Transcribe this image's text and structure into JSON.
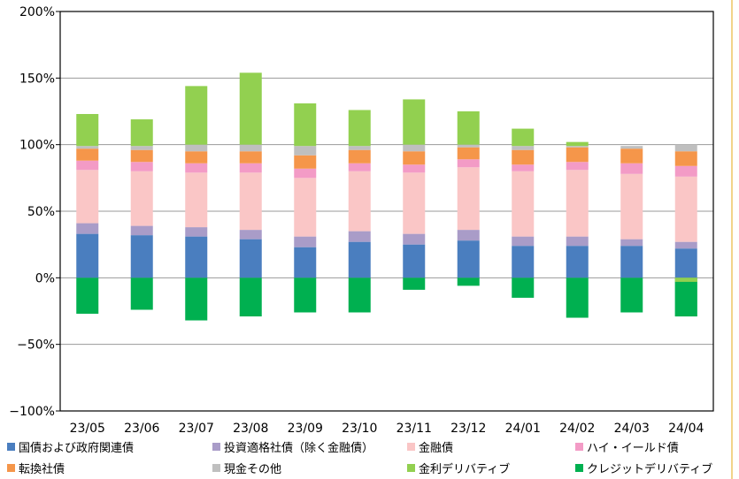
{
  "chart_data": {
    "type": "bar",
    "stacked": true,
    "categories": [
      "23/05",
      "23/06",
      "23/07",
      "23/08",
      "23/09",
      "23/10",
      "23/11",
      "23/12",
      "24/01",
      "24/02",
      "24/03",
      "24/04"
    ],
    "ylim": [
      -100,
      200
    ],
    "yticks": [
      200,
      150,
      100,
      50,
      0,
      -50,
      -100
    ],
    "ytick_labels": [
      "200%",
      "150%",
      "100%",
      "50%",
      "0%",
      "−50%",
      "−100%"
    ],
    "grid": true,
    "legend_position": "bottom",
    "series": [
      {
        "name": "国債および政府関連債",
        "color": "#4a7ebf",
        "values": [
          33,
          32,
          31,
          29,
          23,
          27,
          25,
          28,
          24,
          24,
          24,
          22
        ]
      },
      {
        "name": "投資適格社債（除く金融債）",
        "color": "#a99cc8",
        "values": [
          8,
          7,
          7,
          7,
          8,
          8,
          8,
          8,
          7,
          7,
          5,
          5
        ]
      },
      {
        "name": "金融債",
        "color": "#fac6c6",
        "values": [
          40,
          41,
          41,
          43,
          44,
          45,
          46,
          47,
          49,
          50,
          49,
          49
        ]
      },
      {
        "name": "ハイ・イールド債",
        "color": "#f39bc6",
        "values": [
          7,
          7,
          7,
          7,
          7,
          6,
          6,
          6,
          5,
          6,
          8,
          8
        ]
      },
      {
        "name": "転換社債",
        "color": "#f5964a",
        "values": [
          9,
          9,
          9,
          9,
          10,
          10,
          10,
          9,
          11,
          11,
          11,
          11
        ]
      },
      {
        "name": "現金その他",
        "color": "#bfbfbf",
        "values": [
          2,
          3,
          5,
          5,
          7,
          3,
          5,
          2,
          3,
          1,
          2,
          5
        ]
      },
      {
        "name": "金利デリバティブ",
        "color": "#92d050",
        "values": [
          24,
          20,
          44,
          54,
          32,
          27,
          34,
          25,
          13,
          3,
          0,
          0
        ]
      },
      {
        "name": "クレジットデリバティブ",
        "color": "#00b050",
        "values": [
          -27,
          -24,
          -32,
          -29,
          -26,
          -26,
          -9,
          -6,
          -15,
          -30,
          -26,
          -29
        ]
      }
    ],
    "negative_interest_rate_derivative": [
      0,
      0,
      0,
      0,
      0,
      0,
      0,
      0,
      0,
      0,
      0,
      -3
    ]
  }
}
